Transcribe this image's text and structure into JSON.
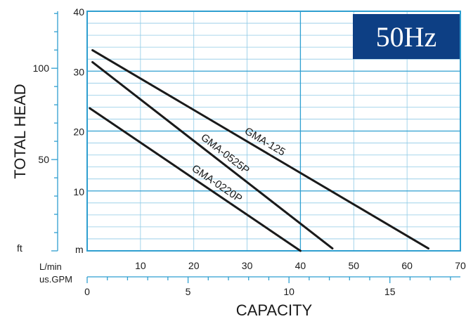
{
  "colors": {
    "frame": "#2f9fd0",
    "grid": "#8fcae6",
    "curve": "#1a1a1a",
    "badge_bg": "#0d3f84",
    "badge_text": "#ffffff"
  },
  "badge": {
    "text": "50Hz"
  },
  "chart_data": {
    "type": "line",
    "title": "",
    "xlabel": "CAPACITY",
    "ylabel": "TOTAL HEAD",
    "x_unit": "L/min",
    "x2_unit": "us.GPM",
    "y_unit": "m",
    "y2_unit": "ft",
    "xlim": [
      0,
      70
    ],
    "ylim": [
      0,
      40
    ],
    "x_ticks": [
      10,
      20,
      30,
      40,
      50,
      60,
      70
    ],
    "y_ticks": [
      10,
      20,
      30,
      40
    ],
    "x2_ticks": [
      0,
      5,
      10,
      15
    ],
    "y2_ticks": [
      50,
      100
    ],
    "grid": true,
    "series": [
      {
        "name": "GMA-125",
        "x": [
          1,
          64
        ],
        "y": [
          33.5,
          0.4
        ]
      },
      {
        "name": "GMA-0525P",
        "x": [
          1,
          46
        ],
        "y": [
          31.5,
          0.4
        ]
      },
      {
        "name": "GMA-0220P",
        "x": [
          0.5,
          40
        ],
        "y": [
          23.8,
          0
        ]
      }
    ]
  }
}
